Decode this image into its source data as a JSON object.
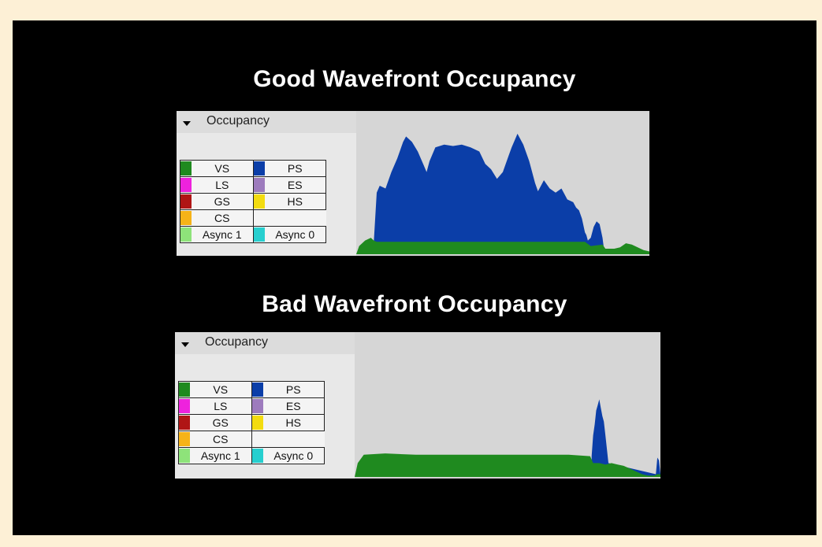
{
  "good": {
    "title": "Good Wavefront Occupancy",
    "panel_label": "Occupancy"
  },
  "bad": {
    "title": "Bad Wavefront Occupancy",
    "panel_label": "Occupancy"
  },
  "legend": [
    {
      "name": "VS",
      "color": "#1f8a1f"
    },
    {
      "name": "PS",
      "color": "#0b3ea8"
    },
    {
      "name": "LS",
      "color": "#ee22dd"
    },
    {
      "name": "ES",
      "color": "#9d7bbd"
    },
    {
      "name": "GS",
      "color": "#b01515"
    },
    {
      "name": "HS",
      "color": "#f3dc10"
    },
    {
      "name": "CS",
      "color": "#f6b318"
    },
    {
      "name": "Async 1",
      "color": "#8ee37a"
    },
    {
      "name": "Async 0",
      "color": "#27cfcf"
    }
  ],
  "chart_data": [
    {
      "type": "area",
      "title": "Good Wavefront Occupancy",
      "xlim": [
        0,
        100
      ],
      "ylim": [
        0,
        100
      ],
      "series": [
        {
          "name": "VS",
          "color": "#1f8a1f",
          "x": [
            0,
            1,
            3,
            5,
            6,
            7,
            60,
            70,
            78,
            80,
            84,
            85,
            88,
            90,
            92,
            94,
            97,
            98,
            100
          ],
          "y": [
            0,
            6,
            10,
            12,
            10,
            9,
            9,
            9,
            9,
            6,
            7,
            4,
            4,
            5,
            8,
            7,
            4,
            3,
            2
          ]
        },
        {
          "name": "PS",
          "color": "#0b3ea8",
          "x": [
            6,
            7,
            8,
            10,
            12,
            14,
            16,
            17,
            19,
            21,
            23,
            24,
            25,
            27,
            30,
            33,
            36,
            39,
            42,
            44,
            46,
            48,
            50,
            52,
            53,
            54,
            55,
            57,
            59,
            61,
            62,
            63,
            64,
            66,
            68,
            70,
            71,
            72,
            74,
            75,
            76,
            77,
            78,
            78.5,
            79,
            80,
            81,
            82,
            83,
            84,
            84.5
          ],
          "y": [
            9,
            45,
            50,
            48,
            60,
            70,
            82,
            86,
            82,
            75,
            65,
            60,
            68,
            78,
            80,
            79,
            80,
            78,
            75,
            66,
            62,
            55,
            60,
            72,
            78,
            83,
            88,
            80,
            68,
            52,
            46,
            50,
            54,
            48,
            45,
            48,
            44,
            40,
            38,
            34,
            32,
            26,
            16,
            14,
            10,
            12,
            20,
            24,
            22,
            12,
            4
          ]
        }
      ]
    },
    {
      "type": "area",
      "title": "Bad Wavefront Occupancy",
      "xlim": [
        0,
        100
      ],
      "ylim": [
        0,
        100
      ],
      "series": [
        {
          "name": "VS",
          "color": "#1f8a1f",
          "x": [
            0,
            1,
            3,
            10,
            20,
            40,
            60,
            70,
            77,
            78,
            80,
            82,
            84,
            86,
            88,
            90,
            92,
            94,
            96,
            98,
            99,
            100
          ],
          "y": [
            0,
            10,
            16,
            17,
            16,
            16,
            16,
            16,
            15,
            10,
            10,
            9,
            10,
            9,
            8,
            6,
            4,
            2,
            1,
            1,
            2,
            2
          ]
        },
        {
          "name": "PS",
          "color": "#0b3ea8",
          "x": [
            77.5,
            78,
            78.5,
            79,
            79.5,
            80,
            80.5,
            81,
            81.5,
            82,
            82.5,
            83,
            98.5,
            99,
            99.5,
            100
          ],
          "y": [
            15,
            30,
            38,
            48,
            52,
            56,
            50,
            44,
            40,
            30,
            20,
            10,
            2,
            14,
            12,
            2
          ]
        }
      ]
    }
  ]
}
